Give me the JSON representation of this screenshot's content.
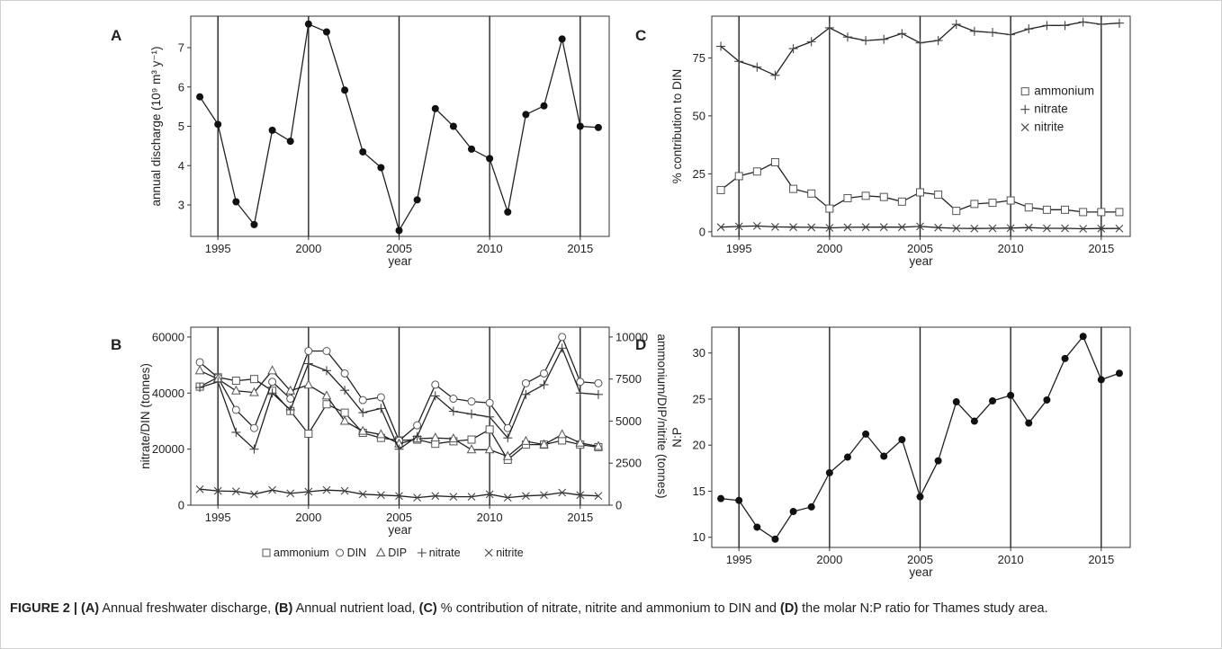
{
  "caption": {
    "fig": "FIGURE 2 |",
    "a_tag": "(A)",
    "a_text": " Annual freshwater discharge, ",
    "b_tag": "(B)",
    "b_text": " Annual nutrient load, ",
    "c_tag": "(C)",
    "c_text": " % contribution of nitrate, nitrite and ammonium to DIN and ",
    "d_tag": "(D)",
    "d_text": " the molar N:P ratio for Thames study area."
  },
  "chart_data": [
    {
      "panel": "A",
      "type": "line",
      "title": "",
      "xlabel": "year",
      "ylabel": "annual discharge (10⁹ m³ y⁻¹)",
      "xlim": [
        1993.5,
        2016.6
      ],
      "ylim": [
        2.2,
        7.8
      ],
      "xticks": [
        1995,
        2000,
        2005,
        2010,
        2015
      ],
      "yticks": [
        3,
        4,
        5,
        6,
        7
      ],
      "vlines": [
        1995,
        2000,
        2005,
        2010,
        2015
      ],
      "x": [
        1994,
        1995,
        1996,
        1997,
        1998,
        1999,
        2000,
        2001,
        2002,
        2003,
        2004,
        2005,
        2006,
        2007,
        2008,
        2009,
        2010,
        2011,
        2012,
        2013,
        2014,
        2015,
        2016
      ],
      "series": [
        {
          "name": "",
          "marker": "dot",
          "values": [
            5.75,
            5.05,
            3.08,
            2.5,
            4.9,
            4.62,
            7.6,
            7.4,
            5.92,
            4.35,
            3.95,
            2.35,
            3.13,
            5.45,
            5.0,
            4.42,
            4.18,
            2.82,
            5.3,
            5.52,
            7.22,
            5.0,
            4.97
          ]
        }
      ]
    },
    {
      "panel": "B",
      "type": "line",
      "title": "",
      "xlabel": "year",
      "ylabel": "nitrate/DIN (tonnes)",
      "ylabel_right": "ammonium/DIP/nitrite (tonnes)",
      "xlim": [
        1993.5,
        2016.6
      ],
      "ylim": [
        0,
        63500
      ],
      "ylim_right": [
        0,
        10583
      ],
      "xticks": [
        1995,
        2000,
        2005,
        2010,
        2015
      ],
      "yticks": [
        0,
        20000,
        40000,
        60000
      ],
      "yticks_right": [
        0,
        2500,
        5000,
        7500,
        10000
      ],
      "vlines": [
        1995,
        2000,
        2005,
        2010,
        2015
      ],
      "legend": "bottom",
      "x": [
        1994,
        1995,
        1996,
        1997,
        1998,
        1999,
        2000,
        2001,
        2002,
        2003,
        2004,
        2005,
        2006,
        2007,
        2008,
        2009,
        2010,
        2011,
        2012,
        2013,
        2014,
        2015,
        2016
      ],
      "series": [
        {
          "name": "ammonium",
          "marker": "square",
          "axis": "right",
          "values": [
            7050,
            7600,
            7400,
            7500,
            6800,
            5600,
            4250,
            6000,
            5500,
            4300,
            4000,
            3850,
            3900,
            3650,
            3800,
            3900,
            4500,
            2700,
            3600,
            3600,
            3850,
            3600,
            3450
          ]
        },
        {
          "name": "DIN",
          "marker": "circle",
          "axis": "left",
          "values": [
            51000,
            45500,
            34000,
            27500,
            44000,
            38000,
            55000,
            55000,
            47000,
            37500,
            38500,
            23000,
            28500,
            43000,
            38000,
            37000,
            36500,
            27500,
            43500,
            47000,
            60000,
            44000,
            43500
          ]
        },
        {
          "name": "DIP",
          "marker": "triangle",
          "axis": "right",
          "values": [
            8000,
            7500,
            6800,
            6700,
            8000,
            6800,
            7150,
            6500,
            5000,
            4400,
            4200,
            3650,
            3950,
            4000,
            3950,
            3300,
            3300,
            2900,
            3800,
            3600,
            4200,
            3700,
            3500
          ]
        },
        {
          "name": "nitrate",
          "marker": "plus",
          "axis": "left",
          "values": [
            42000,
            44000,
            26000,
            20000,
            40000,
            34000,
            50500,
            48000,
            41000,
            33000,
            34500,
            20000,
            24500,
            39000,
            33500,
            32500,
            31500,
            24000,
            39500,
            43000,
            56000,
            40000,
            39500
          ]
        },
        {
          "name": "nitrite",
          "marker": "cross",
          "axis": "right",
          "values": [
            950,
            850,
            820,
            650,
            900,
            700,
            800,
            900,
            850,
            650,
            600,
            550,
            450,
            550,
            500,
            500,
            650,
            450,
            550,
            600,
            750,
            600,
            550
          ]
        }
      ]
    },
    {
      "panel": "C",
      "type": "line",
      "title": "",
      "xlabel": "year",
      "ylabel": "% contribution to DIN",
      "xlim": [
        1993.5,
        2016.6
      ],
      "ylim": [
        -2,
        93
      ],
      "xticks": [
        1995,
        2000,
        2005,
        2010,
        2015
      ],
      "yticks": [
        0,
        25,
        50,
        75
      ],
      "vlines": [
        1995,
        2000,
        2005,
        2010,
        2015
      ],
      "legend": "right",
      "x": [
        1994,
        1995,
        1996,
        1997,
        1998,
        1999,
        2000,
        2001,
        2002,
        2003,
        2004,
        2005,
        2006,
        2007,
        2008,
        2009,
        2010,
        2011,
        2012,
        2013,
        2014,
        2015,
        2016
      ],
      "series": [
        {
          "name": "ammonium",
          "marker": "square",
          "values": [
            18,
            24,
            26,
            30,
            18.5,
            16.5,
            10,
            14.5,
            15.5,
            15,
            13,
            17,
            16,
            9,
            12,
            12.5,
            13.5,
            10.5,
            9.5,
            9.5,
            8.5,
            8.5,
            8.5
          ]
        },
        {
          "name": "nitrate",
          "marker": "plus",
          "values": [
            80,
            73.5,
            71,
            67.5,
            79,
            82,
            88,
            84,
            82.5,
            83,
            85.5,
            81.5,
            82.5,
            89.5,
            86.5,
            86,
            85,
            87.5,
            89,
            89,
            90.5,
            89.5,
            90
          ]
        },
        {
          "name": "nitrite",
          "marker": "cross",
          "values": [
            2,
            2.3,
            2.5,
            2.1,
            2,
            1.9,
            1.7,
            1.9,
            2,
            2,
            2,
            2.3,
            1.8,
            1.5,
            1.4,
            1.5,
            1.6,
            1.8,
            1.5,
            1.5,
            1.3,
            1.4,
            1.4
          ]
        }
      ]
    },
    {
      "panel": "D",
      "type": "line",
      "title": "",
      "xlabel": "year",
      "ylabel": "N:P",
      "xlim": [
        1993.5,
        2016.6
      ],
      "ylim": [
        8.9,
        32.8
      ],
      "xticks": [
        1995,
        2000,
        2005,
        2010,
        2015
      ],
      "yticks": [
        10,
        15,
        20,
        25,
        30
      ],
      "vlines": [
        1995,
        2000,
        2005,
        2010,
        2015
      ],
      "x": [
        1994,
        1995,
        1996,
        1997,
        1998,
        1999,
        2000,
        2001,
        2002,
        2003,
        2004,
        2005,
        2006,
        2007,
        2008,
        2009,
        2010,
        2011,
        2012,
        2013,
        2014,
        2015,
        2016
      ],
      "series": [
        {
          "name": "",
          "marker": "dot",
          "values": [
            14.2,
            14.0,
            11.1,
            9.8,
            12.8,
            13.3,
            17.0,
            18.7,
            21.2,
            18.8,
            20.6,
            14.4,
            18.3,
            24.7,
            22.6,
            24.8,
            25.4,
            22.4,
            24.9,
            29.4,
            31.8,
            27.1,
            27.8
          ]
        }
      ]
    }
  ]
}
